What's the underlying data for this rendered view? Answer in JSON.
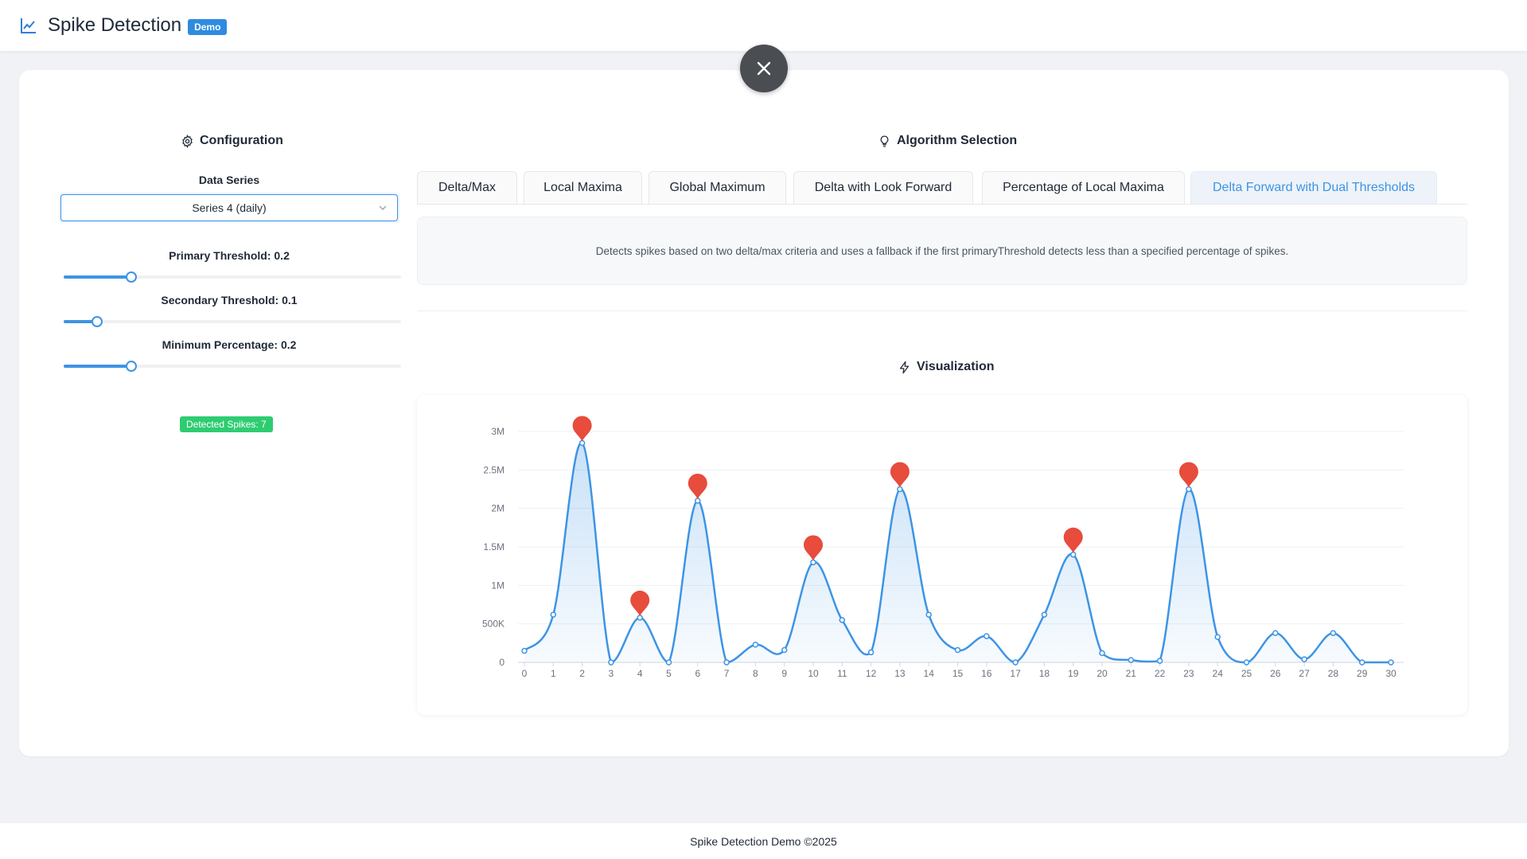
{
  "header": {
    "title": "Spike Detection",
    "badge": "Demo"
  },
  "config": {
    "title": "Configuration",
    "data_series_label": "Data Series",
    "data_series_value": "Series 4 (daily)",
    "primary_label": "Primary Threshold: 0.2",
    "primary_value": 0.2,
    "secondary_label": "Secondary Threshold: 0.1",
    "secondary_value": 0.1,
    "min_pct_label": "Minimum Percentage: 0.2",
    "min_pct_value": 0.2,
    "detected_badge": "Detected Spikes: 7"
  },
  "algorithm": {
    "title": "Algorithm Selection",
    "tabs": [
      {
        "label": "Delta/Max",
        "active": false
      },
      {
        "label": "Local Maxima",
        "active": false
      },
      {
        "label": "Global Maximum",
        "active": false
      },
      {
        "label": "Delta with Look Forward",
        "active": false
      },
      {
        "label": "Percentage of Local Maxima",
        "active": false
      },
      {
        "label": "Delta Forward with Dual Thresholds",
        "active": true
      }
    ],
    "description": "Detects spikes based on two delta/max criteria and uses a fallback if the first primaryThreshold detects less than a specified percentage of spikes."
  },
  "visualization": {
    "title": "Visualization"
  },
  "chart_data": {
    "type": "area",
    "x": [
      0,
      1,
      2,
      3,
      4,
      5,
      6,
      7,
      8,
      9,
      10,
      11,
      12,
      13,
      14,
      15,
      16,
      17,
      18,
      19,
      20,
      21,
      22,
      23,
      24,
      25,
      26,
      27,
      28,
      29,
      30
    ],
    "values": [
      150000,
      620000,
      2850000,
      0,
      580000,
      0,
      2100000,
      0,
      230000,
      160000,
      1300000,
      550000,
      130000,
      2250000,
      620000,
      160000,
      340000,
      0,
      620000,
      1400000,
      120000,
      30000,
      20000,
      2250000,
      330000,
      0,
      380000,
      40000,
      380000,
      0,
      0
    ],
    "spikes": [
      2,
      4,
      6,
      10,
      13,
      19,
      23
    ],
    "y_ticks": [
      "0",
      "500K",
      "1M",
      "1.5M",
      "2M",
      "2.5M",
      "3M"
    ],
    "ylim": [
      0,
      3000000
    ],
    "grid": true,
    "colors": {
      "line": "#3d94e5",
      "area": "#3d94e5",
      "marker": "#e74c3c"
    }
  },
  "footer": {
    "text": "Spike Detection Demo ©2025"
  },
  "icons": {
    "logo": "line-chart-icon",
    "close": "close-icon",
    "config": "gear-icon",
    "algorithm": "bulb-icon",
    "visualization": "thunderbolt-icon",
    "select": "chevron-down-icon"
  }
}
